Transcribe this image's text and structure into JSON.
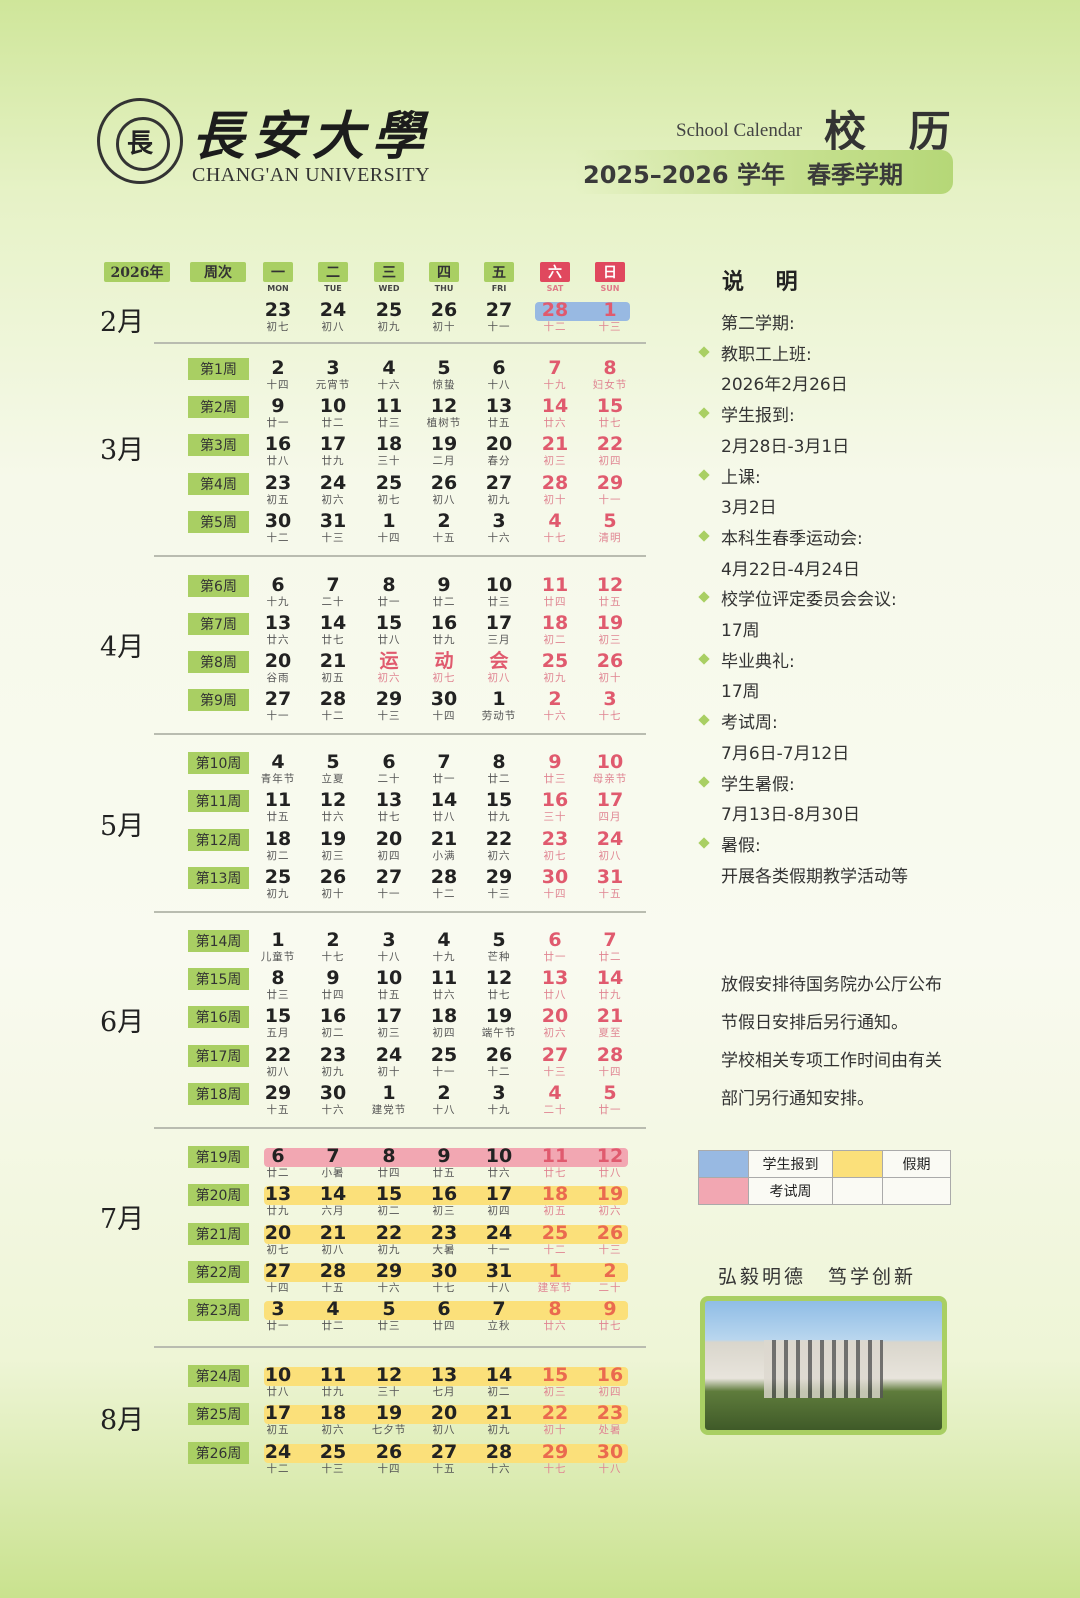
{
  "header": {
    "logo_cn": "長安大學",
    "logo_en": "CHANG'AN UNIVERSITY",
    "seal_text": "CHANG'AN UNIVERSITY",
    "title_en": "School Calendar",
    "title_cn": "校 历",
    "academic_year": "2025–2026 学年",
    "term": "春季学期"
  },
  "grid_header": {
    "year": "2026年",
    "week_col": "周次",
    "days": [
      {
        "cn": "一",
        "en": "MON"
      },
      {
        "cn": "二",
        "en": "TUE"
      },
      {
        "cn": "三",
        "en": "WED"
      },
      {
        "cn": "四",
        "en": "THU"
      },
      {
        "cn": "五",
        "en": "FRI"
      },
      {
        "cn": "六",
        "en": "SAT"
      },
      {
        "cn": "日",
        "en": "SUN"
      }
    ]
  },
  "colors": {
    "accent_green": "#a9cf63",
    "weekend_red": "#e0485e",
    "report_blue": "#98b9e2",
    "exam_pink": "#f2a7b2",
    "holiday_yellow": "#fbe07a"
  },
  "months": [
    {
      "label": "2月",
      "weeks": [
        {
          "week": "",
          "highlight": "report",
          "highlight_cols": [
            5,
            6
          ],
          "days": [
            [
              "23",
              "初七"
            ],
            [
              "24",
              "初八"
            ],
            [
              "25",
              "初九"
            ],
            [
              "26",
              "初十"
            ],
            [
              "27",
              "十一"
            ],
            [
              "28",
              "十二"
            ],
            [
              "1",
              "十三"
            ]
          ]
        }
      ]
    },
    {
      "label": "3月",
      "weeks": [
        {
          "week": "第1周",
          "days": [
            [
              "2",
              "十四"
            ],
            [
              "3",
              "元宵节"
            ],
            [
              "4",
              "十六"
            ],
            [
              "5",
              "惊蛰"
            ],
            [
              "6",
              "十八"
            ],
            [
              "7",
              "十九"
            ],
            [
              "8",
              "妇女节"
            ]
          ]
        },
        {
          "week": "第2周",
          "days": [
            [
              "9",
              "廿一"
            ],
            [
              "10",
              "廿二"
            ],
            [
              "11",
              "廿三"
            ],
            [
              "12",
              "植树节"
            ],
            [
              "13",
              "廿五"
            ],
            [
              "14",
              "廿六"
            ],
            [
              "15",
              "廿七"
            ]
          ]
        },
        {
          "week": "第3周",
          "days": [
            [
              "16",
              "廿八"
            ],
            [
              "17",
              "廿九"
            ],
            [
              "18",
              "三十"
            ],
            [
              "19",
              "二月"
            ],
            [
              "20",
              "春分"
            ],
            [
              "21",
              "初三"
            ],
            [
              "22",
              "初四"
            ]
          ]
        },
        {
          "week": "第4周",
          "days": [
            [
              "23",
              "初五"
            ],
            [
              "24",
              "初六"
            ],
            [
              "25",
              "初七"
            ],
            [
              "26",
              "初八"
            ],
            [
              "27",
              "初九"
            ],
            [
              "28",
              "初十"
            ],
            [
              "29",
              "十一"
            ]
          ]
        },
        {
          "week": "第5周",
          "days": [
            [
              "30",
              "十二"
            ],
            [
              "31",
              "十三"
            ],
            [
              "1",
              "十四"
            ],
            [
              "2",
              "十五"
            ],
            [
              "3",
              "十六"
            ],
            [
              "4",
              "十七"
            ],
            [
              "5",
              "清明"
            ]
          ]
        }
      ]
    },
    {
      "label": "4月",
      "weeks": [
        {
          "week": "第6周",
          "days": [
            [
              "6",
              "十九"
            ],
            [
              "7",
              "二十"
            ],
            [
              "8",
              "廿一"
            ],
            [
              "9",
              "廿二"
            ],
            [
              "10",
              "廿三"
            ],
            [
              "11",
              "廿四"
            ],
            [
              "12",
              "廿五"
            ]
          ]
        },
        {
          "week": "第7周",
          "days": [
            [
              "13",
              "廿六"
            ],
            [
              "14",
              "廿七"
            ],
            [
              "15",
              "廿八"
            ],
            [
              "16",
              "廿九"
            ],
            [
              "17",
              "三月"
            ],
            [
              "18",
              "初二"
            ],
            [
              "19",
              "初三"
            ]
          ]
        },
        {
          "week": "第8周",
          "red_cols": [
            2,
            3,
            4
          ],
          "days": [
            [
              "20",
              "谷雨"
            ],
            [
              "21",
              "初五"
            ],
            [
              "运",
              "初六"
            ],
            [
              "动",
              "初七"
            ],
            [
              "会",
              "初八"
            ],
            [
              "25",
              "初九"
            ],
            [
              "26",
              "初十"
            ]
          ]
        },
        {
          "week": "第9周",
          "days": [
            [
              "27",
              "十一"
            ],
            [
              "28",
              "十二"
            ],
            [
              "29",
              "十三"
            ],
            [
              "30",
              "十四"
            ],
            [
              "1",
              "劳动节"
            ],
            [
              "2",
              "十六"
            ],
            [
              "3",
              "十七"
            ]
          ]
        }
      ]
    },
    {
      "label": "5月",
      "weeks": [
        {
          "week": "第10周",
          "days": [
            [
              "4",
              "青年节"
            ],
            [
              "5",
              "立夏"
            ],
            [
              "6",
              "二十"
            ],
            [
              "7",
              "廿一"
            ],
            [
              "8",
              "廿二"
            ],
            [
              "9",
              "廿三"
            ],
            [
              "10",
              "母亲节"
            ]
          ]
        },
        {
          "week": "第11周",
          "days": [
            [
              "11",
              "廿五"
            ],
            [
              "12",
              "廿六"
            ],
            [
              "13",
              "廿七"
            ],
            [
              "14",
              "廿八"
            ],
            [
              "15",
              "廿九"
            ],
            [
              "16",
              "三十"
            ],
            [
              "17",
              "四月"
            ]
          ]
        },
        {
          "week": "第12周",
          "days": [
            [
              "18",
              "初二"
            ],
            [
              "19",
              "初三"
            ],
            [
              "20",
              "初四"
            ],
            [
              "21",
              "小满"
            ],
            [
              "22",
              "初六"
            ],
            [
              "23",
              "初七"
            ],
            [
              "24",
              "初八"
            ]
          ]
        },
        {
          "week": "第13周",
          "days": [
            [
              "25",
              "初九"
            ],
            [
              "26",
              "初十"
            ],
            [
              "27",
              "十一"
            ],
            [
              "28",
              "十二"
            ],
            [
              "29",
              "十三"
            ],
            [
              "30",
              "十四"
            ],
            [
              "31",
              "十五"
            ]
          ]
        }
      ]
    },
    {
      "label": "6月",
      "weeks": [
        {
          "week": "第14周",
          "days": [
            [
              "1",
              "儿童节"
            ],
            [
              "2",
              "十七"
            ],
            [
              "3",
              "十八"
            ],
            [
              "4",
              "十九"
            ],
            [
              "5",
              "芒种"
            ],
            [
              "6",
              "廿一"
            ],
            [
              "7",
              "廿二"
            ]
          ]
        },
        {
          "week": "第15周",
          "days": [
            [
              "8",
              "廿三"
            ],
            [
              "9",
              "廿四"
            ],
            [
              "10",
              "廿五"
            ],
            [
              "11",
              "廿六"
            ],
            [
              "12",
              "廿七"
            ],
            [
              "13",
              "廿八"
            ],
            [
              "14",
              "廿九"
            ]
          ]
        },
        {
          "week": "第16周",
          "days": [
            [
              "15",
              "五月"
            ],
            [
              "16",
              "初二"
            ],
            [
              "17",
              "初三"
            ],
            [
              "18",
              "初四"
            ],
            [
              "19",
              "端午节"
            ],
            [
              "20",
              "初六"
            ],
            [
              "21",
              "夏至"
            ]
          ]
        },
        {
          "week": "第17周",
          "days": [
            [
              "22",
              "初八"
            ],
            [
              "23",
              "初九"
            ],
            [
              "24",
              "初十"
            ],
            [
              "25",
              "十一"
            ],
            [
              "26",
              "十二"
            ],
            [
              "27",
              "十三"
            ],
            [
              "28",
              "十四"
            ]
          ]
        },
        {
          "week": "第18周",
          "days": [
            [
              "29",
              "十五"
            ],
            [
              "30",
              "十六"
            ],
            [
              "1",
              "建党节"
            ],
            [
              "2",
              "十八"
            ],
            [
              "3",
              "十九"
            ],
            [
              "4",
              "二十"
            ],
            [
              "5",
              "廿一"
            ]
          ]
        }
      ]
    },
    {
      "label": "7月",
      "weeks": [
        {
          "week": "第19周",
          "highlight": "exam",
          "days": [
            [
              "6",
              "廿二"
            ],
            [
              "7",
              "小暑"
            ],
            [
              "8",
              "廿四"
            ],
            [
              "9",
              "廿五"
            ],
            [
              "10",
              "廿六"
            ],
            [
              "11",
              "廿七"
            ],
            [
              "12",
              "廿八"
            ]
          ]
        },
        {
          "week": "第20周",
          "highlight": "holiday",
          "days": [
            [
              "13",
              "廿九"
            ],
            [
              "14",
              "六月"
            ],
            [
              "15",
              "初二"
            ],
            [
              "16",
              "初三"
            ],
            [
              "17",
              "初四"
            ],
            [
              "18",
              "初五"
            ],
            [
              "19",
              "初六"
            ]
          ]
        },
        {
          "week": "第21周",
          "highlight": "holiday",
          "days": [
            [
              "20",
              "初七"
            ],
            [
              "21",
              "初八"
            ],
            [
              "22",
              "初九"
            ],
            [
              "23",
              "大暑"
            ],
            [
              "24",
              "十一"
            ],
            [
              "25",
              "十二"
            ],
            [
              "26",
              "十三"
            ]
          ]
        },
        {
          "week": "第22周",
          "highlight": "holiday",
          "days": [
            [
              "27",
              "十四"
            ],
            [
              "28",
              "十五"
            ],
            [
              "29",
              "十六"
            ],
            [
              "30",
              "十七"
            ],
            [
              "31",
              "十八"
            ],
            [
              "1",
              "建军节"
            ],
            [
              "2",
              "二十"
            ]
          ]
        },
        {
          "week": "第23周",
          "highlight": "holiday",
          "days": [
            [
              "3",
              "廿一"
            ],
            [
              "4",
              "廿二"
            ],
            [
              "5",
              "廿三"
            ],
            [
              "6",
              "廿四"
            ],
            [
              "7",
              "立秋"
            ],
            [
              "8",
              "廿六"
            ],
            [
              "9",
              "廿七"
            ]
          ]
        }
      ]
    },
    {
      "label": "8月",
      "weeks": [
        {
          "week": "第24周",
          "highlight": "holiday",
          "days": [
            [
              "10",
              "廿八"
            ],
            [
              "11",
              "廿九"
            ],
            [
              "12",
              "三十"
            ],
            [
              "13",
              "七月"
            ],
            [
              "14",
              "初二"
            ],
            [
              "15",
              "初三"
            ],
            [
              "16",
              "初四"
            ]
          ]
        },
        {
          "week": "第25周",
          "highlight": "holiday",
          "days": [
            [
              "17",
              "初五"
            ],
            [
              "18",
              "初六"
            ],
            [
              "19",
              "七夕节"
            ],
            [
              "20",
              "初八"
            ],
            [
              "21",
              "初九"
            ],
            [
              "22",
              "初十"
            ],
            [
              "23",
              "处暑"
            ]
          ]
        },
        {
          "week": "第26周",
          "highlight": "holiday",
          "days": [
            [
              "24",
              "十二"
            ],
            [
              "25",
              "十三"
            ],
            [
              "26",
              "十四"
            ],
            [
              "27",
              "十五"
            ],
            [
              "28",
              "十六"
            ],
            [
              "29",
              "十七"
            ],
            [
              "30",
              "十八"
            ]
          ]
        }
      ]
    }
  ],
  "notes": {
    "title": "说 明",
    "lines": [
      {
        "text": "第二学期:",
        "bullet": false
      },
      {
        "text": "教职工上班:",
        "bullet": true
      },
      {
        "text": "2026年2月26日",
        "bullet": false
      },
      {
        "text": "学生报到:",
        "bullet": true
      },
      {
        "text": "2月28日-3月1日",
        "bullet": false
      },
      {
        "text": "上课:",
        "bullet": true
      },
      {
        "text": "3月2日",
        "bullet": false
      },
      {
        "text": "本科生春季运动会:",
        "bullet": true
      },
      {
        "text": "4月22日-4月24日",
        "bullet": false
      },
      {
        "text": "校学位评定委员会会议:",
        "bullet": true
      },
      {
        "text": "17周",
        "bullet": false
      },
      {
        "text": "毕业典礼:",
        "bullet": true
      },
      {
        "text": "17周",
        "bullet": false
      },
      {
        "text": "考试周:",
        "bullet": true
      },
      {
        "text": "7月6日-7月12日",
        "bullet": false
      },
      {
        "text": "学生暑假:",
        "bullet": true
      },
      {
        "text": "7月13日-8月30日",
        "bullet": false
      },
      {
        "text": "暑假:",
        "bullet": true
      },
      {
        "text": "开展各类假期教学活动等",
        "bullet": false
      }
    ],
    "notice": [
      "放假安排待国务院办公厅公布",
      "节假日安排后另行通知。",
      "学校相关专项工作时间由有关",
      "部门另行通知安排。"
    ]
  },
  "legend": {
    "report": "学生报到",
    "holiday": "假期",
    "exam": "考试周"
  },
  "motto": "弘毅明德　笃学创新"
}
